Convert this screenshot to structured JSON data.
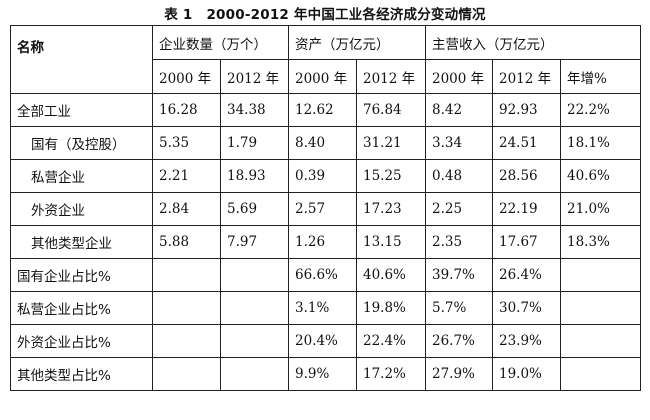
{
  "caption": {
    "number": "表 1",
    "title": "2000-2012 年中国工业各经济成分变动情况"
  },
  "header": {
    "name_col": "名称",
    "groups": [
      "企业数量（万个）",
      "资产（万亿元）",
      "主营收入（万亿元）"
    ],
    "subheads": [
      "2000 年",
      "2012 年",
      "2000 年",
      "2012 年",
      "2000 年",
      "2012 年",
      "年增%"
    ]
  },
  "rows": [
    {
      "name": "全部工业",
      "cells": [
        "16.28",
        "34.38",
        "12.62",
        "76.84",
        "8.42",
        "92.93",
        "22.2%"
      ]
    },
    {
      "name": "国有（及控股）",
      "cells": [
        "5.35",
        "1.79",
        "8.40",
        "31.21",
        "3.34",
        "24.51",
        "18.1%"
      ]
    },
    {
      "name": "私营企业",
      "cells": [
        "2.21",
        "18.93",
        "0.39",
        "15.25",
        "0.48",
        "28.56",
        "40.6%"
      ]
    },
    {
      "name": "外资企业",
      "cells": [
        "2.84",
        "5.69",
        "2.57",
        "17.23",
        "2.25",
        "22.19",
        "21.0%"
      ]
    },
    {
      "name": "其他类型企业",
      "cells": [
        "5.88",
        "7.97",
        "1.26",
        "13.15",
        "2.35",
        "17.67",
        "18.3%"
      ]
    },
    {
      "name": "国有企业占比%",
      "cells": [
        "",
        "",
        "66.6%",
        "40.6%",
        "39.7%",
        "26.4%",
        ""
      ]
    },
    {
      "name": "私营企业占比%",
      "cells": [
        "",
        "",
        "3.1%",
        "19.8%",
        "5.7%",
        "30.7%",
        ""
      ]
    },
    {
      "name": "外资企业占比%",
      "cells": [
        "",
        "",
        "20.4%",
        "22.4%",
        "26.7%",
        "23.9%",
        ""
      ]
    },
    {
      "name": "其他类型占比%",
      "cells": [
        "",
        "",
        "9.9%",
        "17.2%",
        "27.9%",
        "19.0%",
        ""
      ]
    }
  ]
}
